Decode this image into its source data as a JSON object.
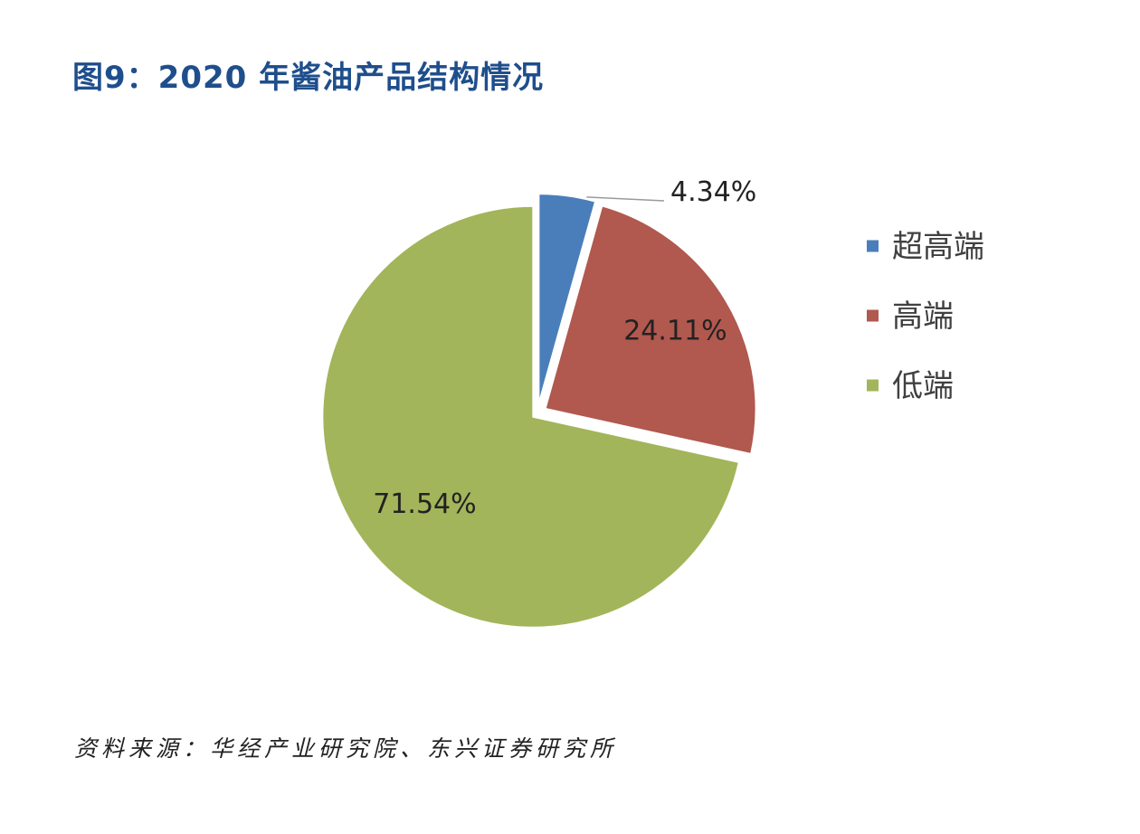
{
  "figure": {
    "title": "图9：2020 年酱油产品结构情况",
    "source": "资料来源：华经产业研究院、东兴证券研究所"
  },
  "chart_data": {
    "type": "pie",
    "title": "",
    "slices": [
      {
        "name": "超高端",
        "value": 4.34,
        "label": "4.34%",
        "color": "#4a7ebb"
      },
      {
        "name": "高端",
        "value": 24.11,
        "label": "24.11%",
        "color": "#b1584f"
      },
      {
        "name": "低端",
        "value": 71.54,
        "label": "71.54%",
        "color": "#a2b55a"
      }
    ],
    "start_angle_deg": 0,
    "direction": "clockwise",
    "legend_position": "right"
  }
}
